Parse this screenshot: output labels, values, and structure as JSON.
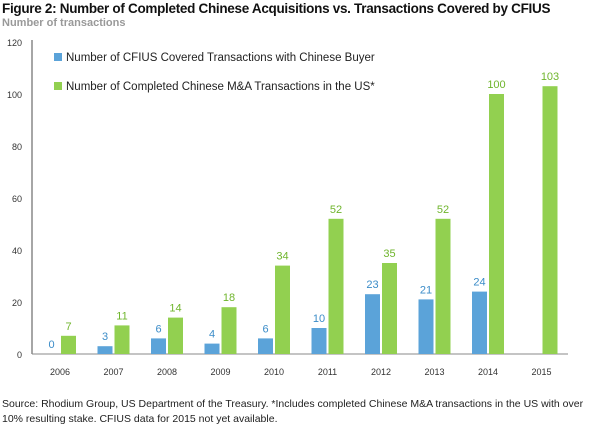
{
  "chart_data": {
    "type": "bar",
    "title": "Figure 2: Number of Completed Chinese Acquisitions vs. Transactions Covered by CFIUS",
    "ylabel": "Number of transactions",
    "categories": [
      "2006",
      "2007",
      "2008",
      "2009",
      "2010",
      "2011",
      "2012",
      "2013",
      "2014",
      "2015"
    ],
    "series": [
      {
        "name": "Number of CFIUS Covered Transactions with Chinese Buyer",
        "color": "#5ba3d9",
        "values": [
          0,
          3,
          6,
          4,
          6,
          10,
          23,
          21,
          24,
          null
        ]
      },
      {
        "name": "Number of Completed Chinese M&A Transactions in the US*",
        "color": "#92d050",
        "values": [
          7,
          11,
          14,
          18,
          34,
          52,
          35,
          52,
          100,
          103
        ]
      }
    ],
    "ylim": [
      0,
      120
    ],
    "yticks": [
      0,
      20,
      40,
      60,
      80,
      100,
      120
    ],
    "grid": false,
    "legend": "top-left",
    "data_labels": true
  },
  "source": "Source: Rhodium Group, US Department of the Treasury. *Includes completed Chinese M&A transactions in the US with over 10% resulting stake. CFIUS data for 2015 not yet available."
}
